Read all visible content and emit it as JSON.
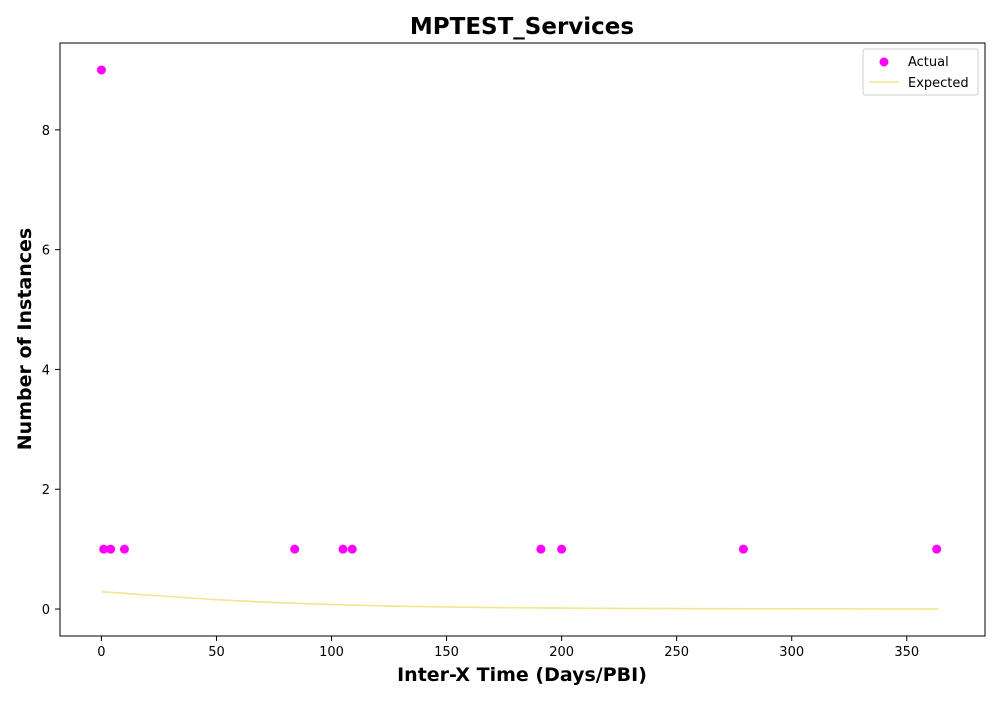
{
  "chart_data": {
    "type": "scatter",
    "title": "MPTEST_Services",
    "xlabel": "Inter-X Time (Days/PBI)",
    "ylabel": "Number of Instances",
    "xlim": [
      -18,
      384
    ],
    "ylim": [
      -0.45,
      9.45
    ],
    "xticks": [
      0,
      50,
      100,
      150,
      200,
      250,
      300,
      350
    ],
    "yticks": [
      0,
      2,
      4,
      6,
      8
    ],
    "grid": false,
    "legend_position": "top-right",
    "series": [
      {
        "name": "Actual",
        "kind": "scatter",
        "color": "#ff00ff",
        "points": [
          [
            0,
            9
          ],
          [
            1,
            1
          ],
          [
            4,
            1
          ],
          [
            10,
            1
          ],
          [
            84,
            1
          ],
          [
            105,
            1
          ],
          [
            109,
            1
          ],
          [
            191,
            1
          ],
          [
            200,
            1
          ],
          [
            279,
            1
          ],
          [
            363,
            1
          ]
        ]
      },
      {
        "name": "Expected",
        "kind": "line",
        "color": "#f0e68c",
        "points": [
          [
            0,
            0.29
          ],
          [
            25,
            0.22
          ],
          [
            50,
            0.155
          ],
          [
            75,
            0.11
          ],
          [
            100,
            0.075
          ],
          [
            125,
            0.05
          ],
          [
            150,
            0.034
          ],
          [
            175,
            0.023
          ],
          [
            200,
            0.016
          ],
          [
            225,
            0.011
          ],
          [
            250,
            0.008
          ],
          [
            275,
            0.006
          ],
          [
            300,
            0.004
          ],
          [
            325,
            0.003
          ],
          [
            350,
            0.002
          ],
          [
            364,
            0.001
          ]
        ]
      }
    ]
  }
}
